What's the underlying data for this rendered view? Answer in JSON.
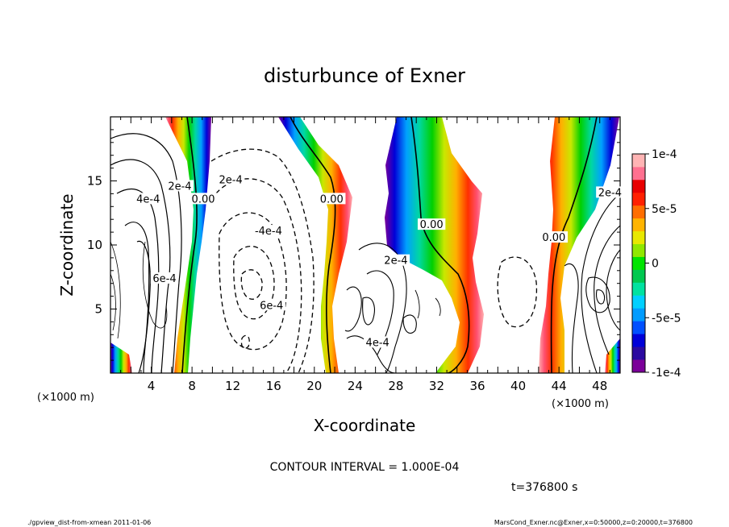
{
  "chart_data": {
    "type": "contour",
    "title": "disturbunce of Exner",
    "xlabel": "X-coordinate",
    "ylabel": "Z-coordinate",
    "x_unit": "(×1000 m)",
    "y_unit": "(×1000 m)",
    "xlim": [
      0,
      50
    ],
    "ylim": [
      0,
      20
    ],
    "x_ticks": [
      4,
      8,
      12,
      16,
      20,
      24,
      28,
      32,
      36,
      40,
      44,
      48
    ],
    "y_ticks": [
      5,
      10,
      15
    ],
    "contour_interval_text": "CONTOUR INTERVAL = 1.000E-04",
    "time_text": "t=376800 s",
    "colorbar": {
      "min": -0.0001,
      "max": 0.0001,
      "labels": [
        {
          "value": 0.0001,
          "text": "1e-4"
        },
        {
          "value": 5e-05,
          "text": "5e-5"
        },
        {
          "value": 0,
          "text": "0"
        },
        {
          "value": -5e-05,
          "text": "-5e-5"
        },
        {
          "value": -0.0001,
          "text": "-1e-4"
        }
      ],
      "colors": [
        "#7b0099",
        "#2b0aa0",
        "#0000d8",
        "#0050ff",
        "#009cff",
        "#00d0ff",
        "#00e2a0",
        "#00c850",
        "#00e400",
        "#90e800",
        "#e8e800",
        "#ffb400",
        "#ff6e00",
        "#ff2000",
        "#e80000",
        "#ff7090",
        "#ffb4b4"
      ]
    },
    "contour_labels": [
      {
        "x": 3.7,
        "z": 13.5,
        "text": "4e-4"
      },
      {
        "x": 6.8,
        "z": 14.5,
        "text": "2e-4"
      },
      {
        "x": 9.1,
        "z": 13.5,
        "text": "0.00"
      },
      {
        "x": 11.8,
        "z": 15.0,
        "text": "2e-4"
      },
      {
        "x": 15.5,
        "z": 11.0,
        "text": "-4e-4"
      },
      {
        "x": 15.8,
        "z": 5.2,
        "text": "6e-4"
      },
      {
        "x": 5.3,
        "z": 7.3,
        "text": "6e-4"
      },
      {
        "x": 21.7,
        "z": 13.5,
        "text": "0.00"
      },
      {
        "x": 28.0,
        "z": 8.7,
        "text": "2e-4"
      },
      {
        "x": 31.5,
        "z": 11.5,
        "text": "0.00"
      },
      {
        "x": 26.2,
        "z": 2.3,
        "text": "4e-4"
      },
      {
        "x": 43.5,
        "z": 10.5,
        "text": "0.00"
      },
      {
        "x": 49.0,
        "z": 14.0,
        "text": "2e-4"
      }
    ],
    "footer_left": "./gpview_dist-from-xmean  2011-01-06",
    "footer_right": "MarsCond_Exner.nc@Exner,x=0:50000,z=0:20000,t=376800"
  }
}
